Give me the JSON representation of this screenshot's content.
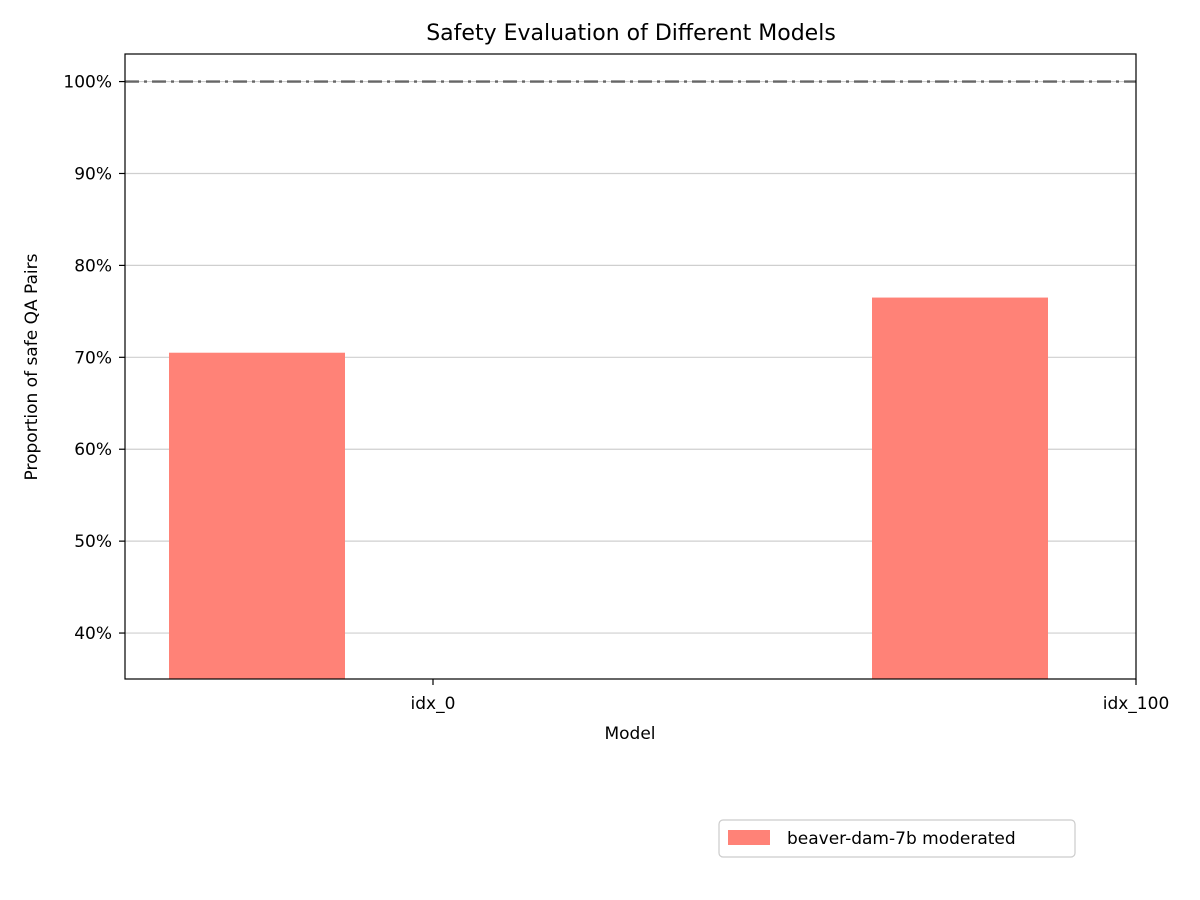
{
  "chart_data": {
    "type": "bar",
    "title": "Safety Evaluation of Different Models",
    "xlabel": "Model",
    "ylabel": "Proportion of safe QA Pairs",
    "ylim": [
      35,
      103
    ],
    "y_unit": "%",
    "y_ticks": [
      40,
      50,
      60,
      70,
      80,
      90,
      100
    ],
    "y_tick_labels": [
      "40%",
      "50%",
      "60%",
      "70%",
      "80%",
      "90%",
      "100%"
    ],
    "grid": "y",
    "reference_line": {
      "value": 100,
      "style": "dash-dot",
      "color": "#666666"
    },
    "categories": [
      "idx_0",
      "idx_100"
    ],
    "series": [
      {
        "name": "beaver-dam-7b moderated",
        "values": [
          70.5,
          76.5
        ],
        "color": "#ff8277"
      }
    ],
    "legend_position": "below-right"
  }
}
